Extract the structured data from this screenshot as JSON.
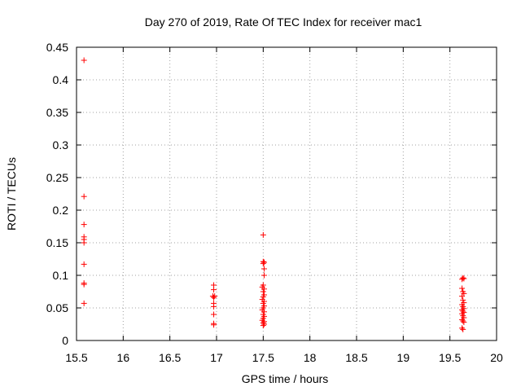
{
  "chart_data": {
    "type": "scatter",
    "title": "Day 270 of 2019, Rate Of TEC Index for receiver mac1",
    "xlabel": "GPS time / hours",
    "ylabel": "ROTI / TECUs",
    "xlim": [
      15.5,
      20
    ],
    "ylim": [
      0,
      0.45
    ],
    "xticks": [
      "15.5",
      "16",
      "16.5",
      "17",
      "17.5",
      "18",
      "18.5",
      "19",
      "19.5",
      "20"
    ],
    "yticks": [
      "0",
      "0.05",
      "0.1",
      "0.15",
      "0.2",
      "0.25",
      "0.3",
      "0.35",
      "0.4",
      "0.45"
    ],
    "grid": true,
    "marker": "+",
    "color": "#ff0000",
    "points": [
      [
        15.58,
        0.43
      ],
      [
        15.58,
        0.221
      ],
      [
        15.58,
        0.178
      ],
      [
        15.58,
        0.159
      ],
      [
        15.58,
        0.155
      ],
      [
        15.58,
        0.15
      ],
      [
        15.58,
        0.117
      ],
      [
        15.58,
        0.088
      ],
      [
        15.58,
        0.086
      ],
      [
        15.58,
        0.057
      ],
      [
        16.97,
        0.085
      ],
      [
        16.97,
        0.078
      ],
      [
        16.96,
        0.068
      ],
      [
        16.98,
        0.068
      ],
      [
        16.97,
        0.066
      ],
      [
        16.97,
        0.057
      ],
      [
        16.97,
        0.052
      ],
      [
        16.97,
        0.04
      ],
      [
        16.97,
        0.026
      ],
      [
        16.97,
        0.024
      ],
      [
        17.5,
        0.162
      ],
      [
        17.5,
        0.121
      ],
      [
        17.51,
        0.12
      ],
      [
        17.5,
        0.118
      ],
      [
        17.51,
        0.11
      ],
      [
        17.51,
        0.1
      ],
      [
        17.5,
        0.085
      ],
      [
        17.49,
        0.082
      ],
      [
        17.51,
        0.079
      ],
      [
        17.5,
        0.075
      ],
      [
        17.51,
        0.07
      ],
      [
        17.5,
        0.067
      ],
      [
        17.49,
        0.063
      ],
      [
        17.51,
        0.06
      ],
      [
        17.5,
        0.057
      ],
      [
        17.51,
        0.053
      ],
      [
        17.5,
        0.05
      ],
      [
        17.49,
        0.047
      ],
      [
        17.51,
        0.044
      ],
      [
        17.5,
        0.04
      ],
      [
        17.51,
        0.037
      ],
      [
        17.5,
        0.034
      ],
      [
        17.49,
        0.031
      ],
      [
        17.51,
        0.029
      ],
      [
        17.5,
        0.027
      ],
      [
        17.51,
        0.025
      ],
      [
        17.5,
        0.023
      ],
      [
        19.64,
        0.096
      ],
      [
        19.63,
        0.094
      ],
      [
        19.65,
        0.095
      ],
      [
        19.63,
        0.08
      ],
      [
        19.64,
        0.075
      ],
      [
        19.65,
        0.072
      ],
      [
        19.63,
        0.068
      ],
      [
        19.64,
        0.062
      ],
      [
        19.65,
        0.058
      ],
      [
        19.63,
        0.055
      ],
      [
        19.64,
        0.052
      ],
      [
        19.65,
        0.049
      ],
      [
        19.63,
        0.047
      ],
      [
        19.64,
        0.045
      ],
      [
        19.65,
        0.043
      ],
      [
        19.63,
        0.041
      ],
      [
        19.64,
        0.038
      ],
      [
        19.65,
        0.035
      ],
      [
        19.63,
        0.032
      ],
      [
        19.64,
        0.03
      ],
      [
        19.65,
        0.028
      ],
      [
        19.63,
        0.019
      ],
      [
        19.64,
        0.017
      ]
    ]
  }
}
